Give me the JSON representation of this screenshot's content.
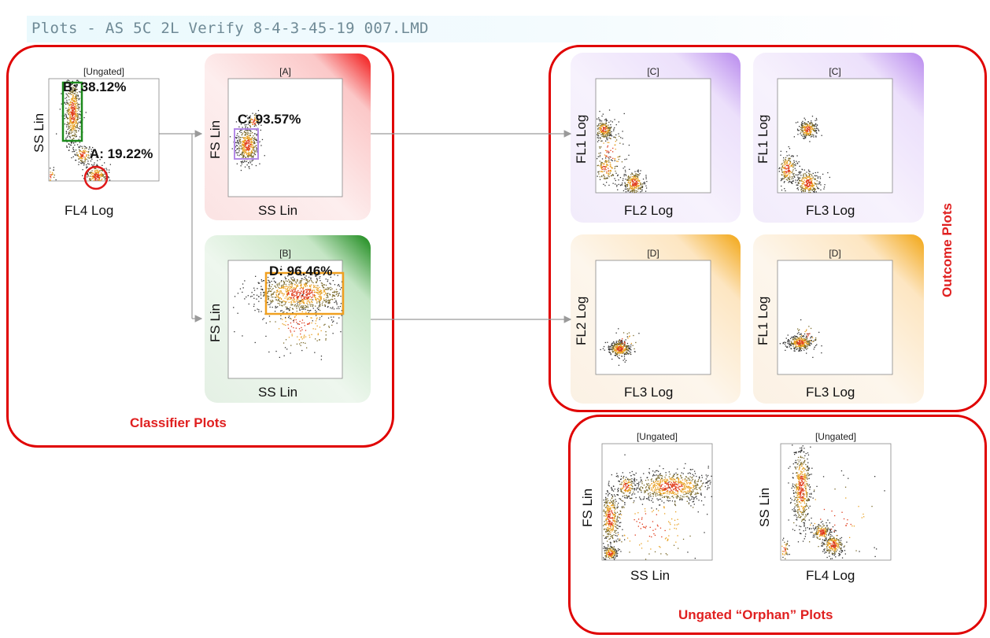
{
  "window": {
    "title": "Plots - AS 5C 2L Verify 8-4-3-45-19 007.LMD"
  },
  "groups": {
    "classifier": "Classifier Plots",
    "outcome": "Outcome Plots",
    "orphan": "Ungated “Orphan” Plots"
  },
  "colors": {
    "group_border": "#e00000",
    "gate_red": "#e01818",
    "gate_green": "#1c8a1c",
    "gate_purple": "#b48ae8",
    "gate_orange": "#f0a020",
    "connector": "#9a9a9a"
  },
  "plots": [
    {
      "id": "p1",
      "header": "[Ungated]",
      "xlabel": "FL4 Log",
      "ylabel": "SS Lin",
      "theme": "none",
      "gates": [
        {
          "label": "B: 38.12%",
          "shape": "rect",
          "color": "#1c8a1c"
        },
        {
          "label": "A: 19.22%",
          "shape": "ellipse",
          "color": "#e01818"
        }
      ]
    },
    {
      "id": "p2",
      "header": "[A]",
      "xlabel": "SS Lin",
      "ylabel": "FS Lin",
      "theme": "red",
      "gates": [
        {
          "label": "C: 93.57%",
          "shape": "rect",
          "color": "#b48ae8"
        }
      ]
    },
    {
      "id": "p3",
      "header": "[B]",
      "xlabel": "SS Lin",
      "ylabel": "FS Lin",
      "theme": "green",
      "gates": [
        {
          "label": "D: 96.46%",
          "shape": "rect",
          "color": "#f0a020"
        }
      ]
    },
    {
      "id": "p4",
      "header": "[C]",
      "xlabel": "FL2 Log",
      "ylabel": "FL1 Log",
      "theme": "purple",
      "gates": []
    },
    {
      "id": "p5",
      "header": "[C]",
      "xlabel": "FL3 Log",
      "ylabel": "FL1 Log",
      "theme": "purple",
      "gates": []
    },
    {
      "id": "p6",
      "header": "[D]",
      "xlabel": "FL3 Log",
      "ylabel": "FL2 Log",
      "theme": "orange",
      "gates": []
    },
    {
      "id": "p7",
      "header": "[D]",
      "xlabel": "FL3 Log",
      "ylabel": "FL1 Log",
      "theme": "orange",
      "gates": []
    },
    {
      "id": "p8",
      "header": "[Ungated]",
      "xlabel": "SS Lin",
      "ylabel": "FS Lin",
      "theme": "none",
      "gates": []
    },
    {
      "id": "p9",
      "header": "[Ungated]",
      "xlabel": "FL4 Log",
      "ylabel": "SS Lin",
      "theme": "none",
      "gates": []
    }
  ],
  "tick_labels": {
    "lin_max": "1000",
    "lin_mid": "500"
  }
}
